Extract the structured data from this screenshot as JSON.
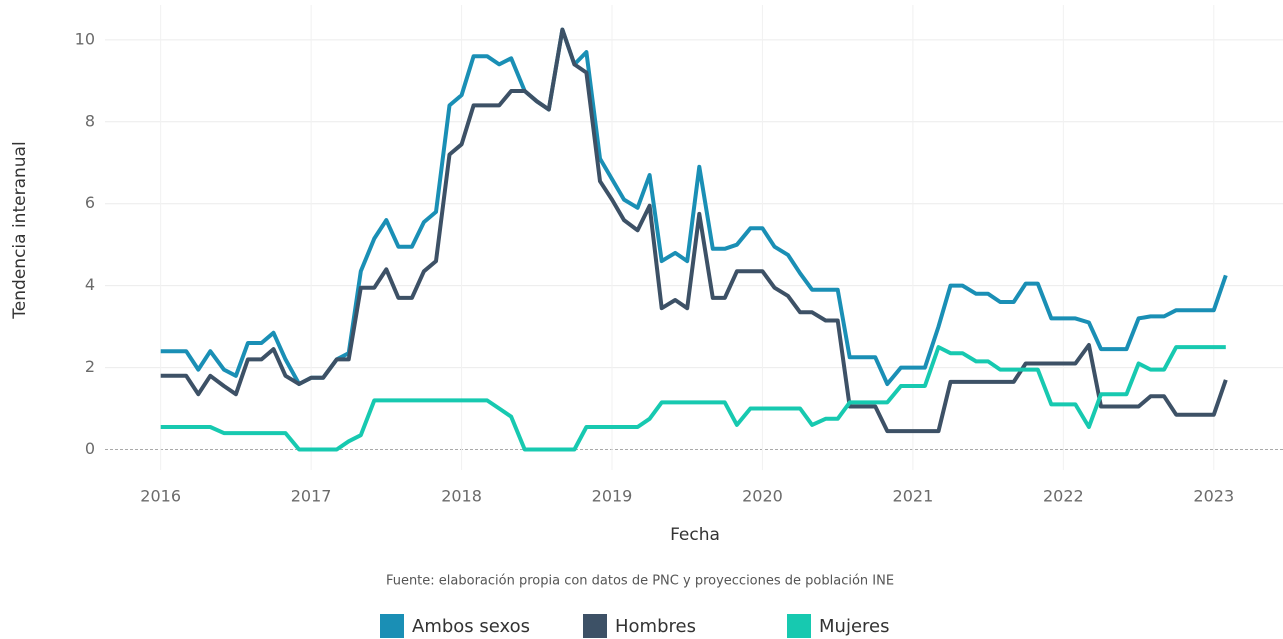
{
  "chart_data": {
    "type": "line",
    "x_label": "Fecha",
    "y_label": "Tendencia interanual",
    "caption": "Fuente: elaboración propia con datos de PNC y proyecciones de población INE",
    "x": [
      2016,
      2016.08,
      2016.17,
      2016.25,
      2016.33,
      2016.42,
      2016.5,
      2016.58,
      2016.67,
      2016.75,
      2016.83,
      2016.92,
      2017,
      2017.08,
      2017.17,
      2017.25,
      2017.33,
      2017.42,
      2017.5,
      2017.58,
      2017.67,
      2017.75,
      2017.83,
      2017.92,
      2018,
      2018.08,
      2018.17,
      2018.25,
      2018.33,
      2018.42,
      2018.5,
      2018.58,
      2018.67,
      2018.75,
      2018.83,
      2018.92,
      2019,
      2019.08,
      2019.17,
      2019.25,
      2019.33,
      2019.42,
      2019.5,
      2019.58,
      2019.67,
      2019.75,
      2019.83,
      2019.92,
      2020,
      2020.08,
      2020.17,
      2020.25,
      2020.33,
      2020.42,
      2020.5,
      2020.58,
      2020.67,
      2020.75,
      2020.83,
      2020.92,
      2021,
      2021.08,
      2021.17,
      2021.25,
      2021.33,
      2021.42,
      2021.5,
      2021.58,
      2021.67,
      2021.75,
      2021.83,
      2021.92,
      2022,
      2022.08,
      2022.17,
      2022.25,
      2022.33,
      2022.42,
      2022.5,
      2022.58,
      2022.67,
      2022.75,
      2022.83,
      2022.92,
      2023,
      2023.08
    ],
    "series": [
      {
        "name": "Ambos sexos",
        "color": "#1a8fb5",
        "values": [
          2.4,
          2.4,
          2.4,
          1.95,
          2.4,
          1.95,
          1.8,
          2.6,
          2.6,
          2.85,
          2.2,
          1.6,
          1.75,
          1.75,
          2.2,
          2.35,
          4.35,
          5.15,
          5.6,
          4.95,
          4.95,
          5.55,
          5.8,
          8.4,
          8.65,
          9.6,
          9.6,
          9.4,
          9.55,
          8.75,
          8.5,
          8.3,
          10.25,
          9.4,
          9.7,
          7.1,
          6.6,
          6.1,
          5.9,
          6.7,
          4.6,
          4.8,
          4.6,
          6.9,
          4.9,
          4.9,
          5.0,
          5.4,
          5.4,
          4.95,
          4.75,
          4.3,
          3.9,
          3.9,
          3.9,
          2.25,
          2.25,
          2.25,
          1.6,
          2.0,
          2.0,
          2.0,
          3.0,
          4.0,
          4.0,
          3.8,
          3.8,
          3.6,
          3.6,
          4.05,
          4.05,
          3.2,
          3.2,
          3.2,
          3.1,
          2.45,
          2.45,
          2.45,
          3.2,
          3.25,
          3.25,
          3.4,
          3.4,
          3.4,
          3.4,
          4.25
        ]
      },
      {
        "name": "Hombres",
        "color": "#3d5166",
        "values": [
          1.8,
          1.8,
          1.8,
          1.35,
          1.8,
          1.55,
          1.35,
          2.2,
          2.2,
          2.45,
          1.8,
          1.6,
          1.75,
          1.75,
          2.2,
          2.2,
          3.95,
          3.95,
          4.4,
          3.7,
          3.7,
          4.35,
          4.6,
          7.2,
          7.45,
          8.4,
          8.4,
          8.4,
          8.75,
          8.75,
          8.5,
          8.3,
          10.25,
          9.4,
          9.2,
          6.55,
          6.1,
          5.6,
          5.35,
          5.95,
          3.45,
          3.65,
          3.45,
          5.75,
          3.7,
          3.7,
          4.35,
          4.35,
          4.35,
          3.95,
          3.75,
          3.35,
          3.35,
          3.15,
          3.15,
          1.05,
          1.05,
          1.05,
          0.45,
          0.45,
          0.45,
          0.45,
          0.45,
          1.65,
          1.65,
          1.65,
          1.65,
          1.65,
          1.65,
          2.1,
          2.1,
          2.1,
          2.1,
          2.1,
          2.55,
          1.05,
          1.05,
          1.05,
          1.05,
          1.3,
          1.3,
          0.85,
          0.85,
          0.85,
          0.85,
          1.7
        ]
      },
      {
        "name": "Mujeres",
        "color": "#17c9b0",
        "values": [
          0.55,
          0.55,
          0.55,
          0.55,
          0.55,
          0.4,
          0.4,
          0.4,
          0.4,
          0.4,
          0.4,
          0,
          0,
          0,
          0,
          0.2,
          0.35,
          1.2,
          1.2,
          1.2,
          1.2,
          1.2,
          1.2,
          1.2,
          1.2,
          1.2,
          1.2,
          1.0,
          0.8,
          0,
          0,
          0,
          0,
          0,
          0.55,
          0.55,
          0.55,
          0.55,
          0.55,
          0.75,
          1.15,
          1.15,
          1.15,
          1.15,
          1.15,
          1.15,
          0.6,
          1.0,
          1.0,
          1.0,
          1.0,
          1.0,
          0.6,
          0.75,
          0.75,
          1.15,
          1.15,
          1.15,
          1.15,
          1.55,
          1.55,
          1.55,
          2.5,
          2.35,
          2.35,
          2.15,
          2.15,
          1.95,
          1.95,
          1.95,
          1.95,
          1.1,
          1.1,
          1.1,
          0.55,
          1.35,
          1.35,
          1.35,
          2.1,
          1.95,
          1.95,
          2.5,
          2.5,
          2.5,
          2.5,
          2.5
        ]
      }
    ],
    "xlim": [
      2015.63,
      2023.46
    ],
    "xticks": [
      2016,
      2017,
      2018,
      2019,
      2020,
      2021,
      2022,
      2023
    ],
    "ylim": [
      -0.5,
      10.85
    ],
    "yticks": [
      0,
      2,
      4,
      6,
      8,
      10
    ],
    "grid": true,
    "legend": "bottom"
  }
}
